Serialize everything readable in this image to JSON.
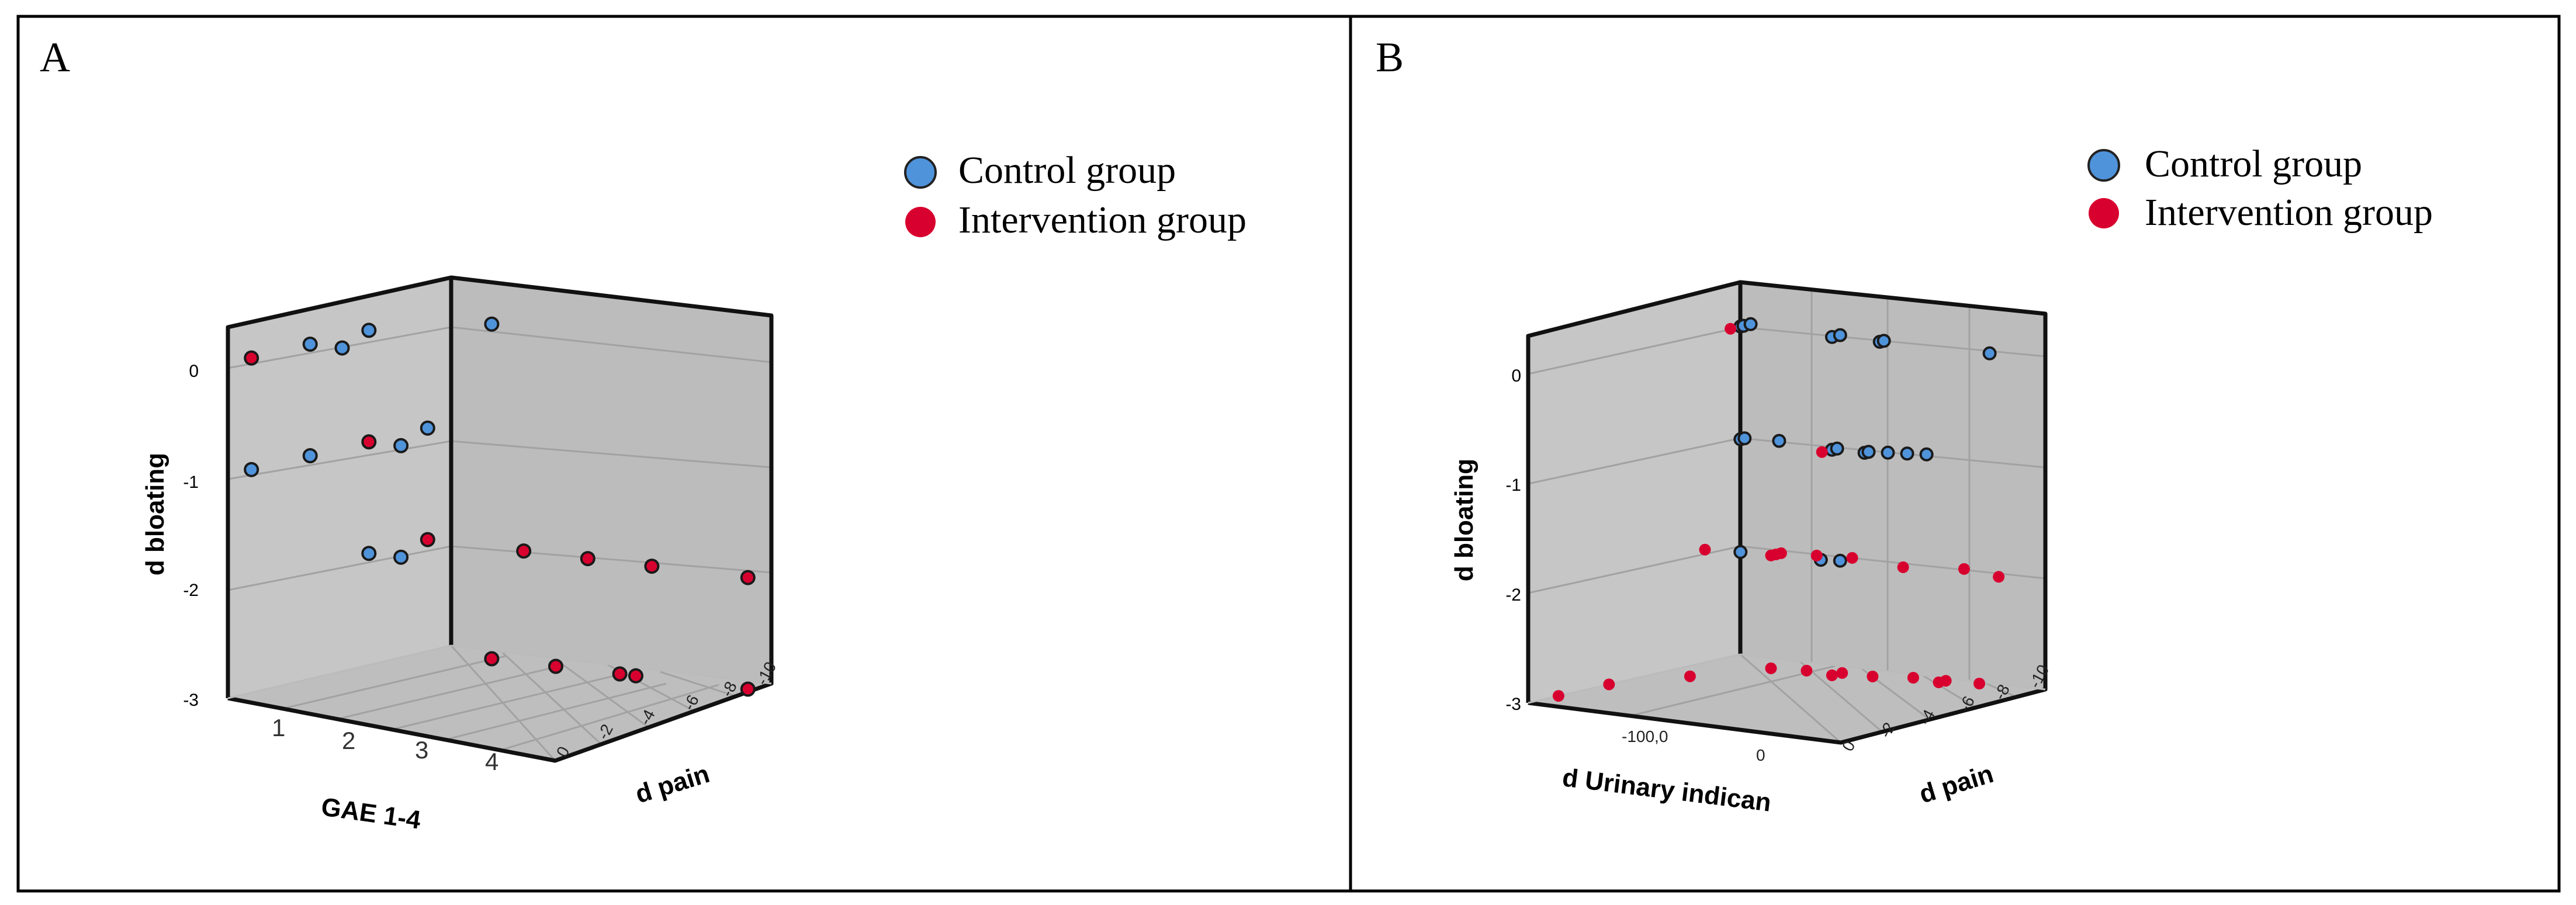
{
  "colors": {
    "control": "#4f93db",
    "intervention": "#d8002e",
    "wall": "#c4c4c4",
    "floor": "#b9b9b9",
    "frame": "#1a1a1a"
  },
  "legend": {
    "control_label": "Control group",
    "intervention_label": "Intervention group"
  },
  "chart_data": [
    {
      "panel_label": "A",
      "type": "scatter",
      "title": "",
      "xlabel": "GAE 1-4",
      "ylabel": "d bloating",
      "zlabel": "d pain",
      "x_ticks": [
        "1",
        "2",
        "3",
        "4"
      ],
      "y_ticks": [
        "0",
        "-1",
        "-2",
        "-3"
      ],
      "z_ticks": [
        "0",
        "-2",
        "-4",
        "-6",
        "-8",
        "-10"
      ],
      "xlim": [
        0.6,
        4.4
      ],
      "ylim": [
        -3,
        0.3
      ],
      "zlim": [
        0,
        -10
      ],
      "series": [
        {
          "name": "Control group",
          "points": [
            {
              "x": 1,
              "y": -1,
              "z": 0
            },
            {
              "x": 2,
              "y": 0,
              "z": -1
            },
            {
              "x": 2,
              "y": -1,
              "z": 0
            },
            {
              "x": 2,
              "y": 0,
              "z": 0
            },
            {
              "x": 3,
              "y": 0,
              "z": 0
            },
            {
              "x": 3,
              "y": -1,
              "z": -1
            },
            {
              "x": 3,
              "y": -2,
              "z": 0
            },
            {
              "x": 3,
              "y": -2,
              "z": -1
            },
            {
              "x": 4,
              "y": 0,
              "z": -2
            },
            {
              "x": 4,
              "y": -1,
              "z": 0
            }
          ]
        },
        {
          "name": "Intervention group",
          "points": [
            {
              "x": 1,
              "y": 0,
              "z": 0
            },
            {
              "x": 3,
              "y": -1,
              "z": 0
            },
            {
              "x": 4,
              "y": -2,
              "z": 0
            },
            {
              "x": 4,
              "y": -2,
              "z": -3
            },
            {
              "x": 4,
              "y": -2,
              "z": -5
            },
            {
              "x": 4,
              "y": -2,
              "z": -7
            },
            {
              "x": 4,
              "y": -2,
              "z": -10
            },
            {
              "x": 4,
              "y": -3,
              "z": -2
            },
            {
              "x": 4,
              "y": -3,
              "z": -4
            },
            {
              "x": 4,
              "y": -3,
              "z": -6
            },
            {
              "x": 4,
              "y": -3,
              "z": -6.5
            },
            {
              "x": 4,
              "y": -3,
              "z": -10
            }
          ]
        }
      ]
    },
    {
      "panel_label": "B",
      "type": "scatter",
      "title": "",
      "xlabel": "d Urinary indican",
      "ylabel": "d bloating",
      "zlabel": "d pain",
      "x_ticks": [
        "-100,0",
        "0"
      ],
      "y_ticks": [
        "0",
        "-1",
        "-2",
        "-3"
      ],
      "z_ticks": [
        "0",
        "-2",
        "-4",
        "-6",
        "-8",
        "-10"
      ],
      "xlim": [
        -180,
        30
      ],
      "ylim": [
        -3,
        0.3
      ],
      "zlim": [
        0,
        -10
      ],
      "series": [
        {
          "name": "Control group",
          "points": [
            {
              "x": 0,
              "y": 0,
              "z": -1
            },
            {
              "x": 3,
              "y": 0,
              "z": -1
            },
            {
              "x": 10,
              "y": 0,
              "z": -1
            },
            {
              "x": 0,
              "y": 0,
              "z": -4
            },
            {
              "x": 8,
              "y": 0,
              "z": -4
            },
            {
              "x": 2,
              "y": 0,
              "z": -5.5
            },
            {
              "x": 6,
              "y": 0,
              "z": -5.5
            },
            {
              "x": 5,
              "y": 0,
              "z": -9
            },
            {
              "x": 0,
              "y": -1,
              "z": -1
            },
            {
              "x": 4,
              "y": -1,
              "z": -1
            },
            {
              "x": 8,
              "y": -1,
              "z": -2
            },
            {
              "x": 0,
              "y": -1,
              "z": -4
            },
            {
              "x": 5,
              "y": -1,
              "z": -4
            },
            {
              "x": 2,
              "y": -1,
              "z": -5
            },
            {
              "x": 6,
              "y": -1,
              "z": -5
            },
            {
              "x": 10,
              "y": -1,
              "z": -5.5
            },
            {
              "x": 14,
              "y": -1,
              "z": -6
            },
            {
              "x": 18,
              "y": -1,
              "z": -6.5
            },
            {
              "x": 0,
              "y": -2,
              "z": -1
            },
            {
              "x": 4,
              "y": -2,
              "z": -3.5
            },
            {
              "x": 8,
              "y": -2,
              "z": -4
            }
          ]
        },
        {
          "name": "Intervention group",
          "points": [
            {
              "x": -10,
              "y": 0,
              "z": -1
            },
            {
              "x": -10,
              "y": -1,
              "z": -4
            },
            {
              "x": -5,
              "y": -2,
              "z": 0
            },
            {
              "x": 0,
              "y": -2,
              "z": -2
            },
            {
              "x": 5,
              "y": -2,
              "z": -2
            },
            {
              "x": 10,
              "y": -2,
              "z": -2
            },
            {
              "x": 15,
              "y": -2,
              "z": -3
            },
            {
              "x": 10,
              "y": -2,
              "z": -6
            },
            {
              "x": 14,
              "y": -2,
              "z": -9
            },
            {
              "x": 20,
              "y": -2,
              "z": -4
            },
            {
              "x": 25,
              "y": -2,
              "z": -7.5
            },
            {
              "x": -150,
              "y": -3,
              "z": 0
            },
            {
              "x": -100,
              "y": -3,
              "z": 0
            },
            {
              "x": -50,
              "y": -3,
              "z": -1
            },
            {
              "x": 0,
              "y": -3,
              "z": -2
            },
            {
              "x": 5,
              "y": -3,
              "z": -3
            },
            {
              "x": 10,
              "y": -3,
              "z": -4
            },
            {
              "x": 0,
              "y": -3,
              "z": -4
            },
            {
              "x": 10,
              "y": -3,
              "z": -5
            },
            {
              "x": 20,
              "y": -3,
              "z": -6
            },
            {
              "x": 15,
              "y": -3,
              "z": -7
            },
            {
              "x": 22,
              "y": -3,
              "z": -7
            },
            {
              "x": 25,
              "y": -3,
              "z": -8
            }
          ]
        }
      ]
    }
  ]
}
